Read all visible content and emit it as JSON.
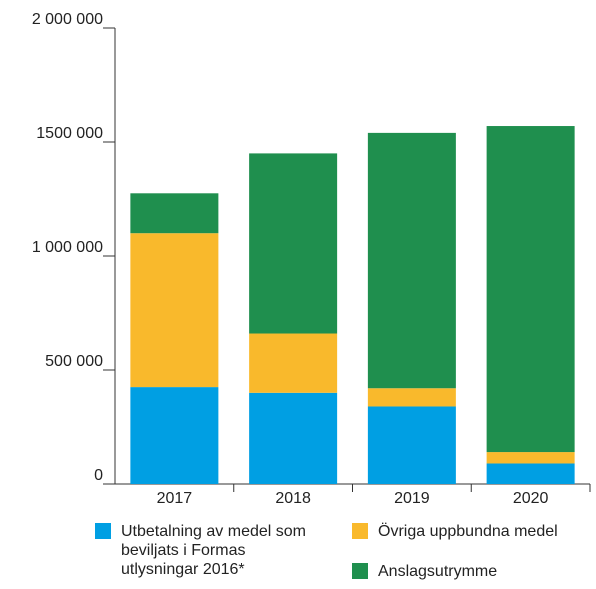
{
  "chart_data": {
    "type": "stacked_bar",
    "categories": [
      "2017",
      "2018",
      "2019",
      "2020"
    ],
    "series": [
      {
        "name": "Utbetalning av medel som beviljats i Formas utlysningar 2016*",
        "color": "#009fe3",
        "values": [
          425000,
          400000,
          340000,
          90000
        ]
      },
      {
        "name": "Övriga uppbundna medel",
        "color": "#f9b92c",
        "values": [
          675000,
          260000,
          80000,
          50000
        ]
      },
      {
        "name": "Anslagsutrymme",
        "color": "#1f8f4e",
        "values": [
          175000,
          790000,
          1120000,
          1430000
        ]
      }
    ],
    "ylim": [
      0,
      2000000
    ],
    "yticks": [
      0,
      {
        "value": 500000,
        "label": "500 000"
      },
      {
        "value": 1000000,
        "label": "1 000 000"
      },
      {
        "value": 1500000,
        "label": "1500 000"
      },
      {
        "value": 2000000,
        "label": "2 000 000"
      }
    ],
    "legend": "bottom"
  }
}
